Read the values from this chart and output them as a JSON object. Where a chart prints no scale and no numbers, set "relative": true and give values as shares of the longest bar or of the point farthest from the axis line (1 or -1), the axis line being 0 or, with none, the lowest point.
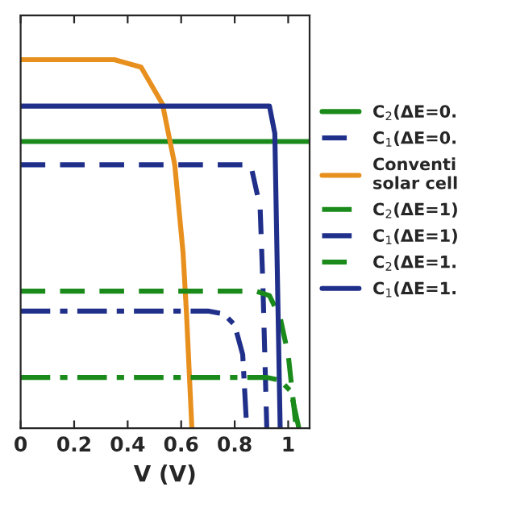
{
  "chart_data": {
    "type": "line",
    "xlabel": "V (V)",
    "relative": true,
    "xlim": [
      0,
      1.08
    ],
    "xticks": [
      0,
      0.2,
      0.4,
      0.6,
      0.8,
      1
    ],
    "legend": "right",
    "grid": false,
    "series": [
      {
        "name": "C$_{2}$(ΔE=0.",
        "color": "#1a8a1a",
        "line_style": "solid",
        "x": [
          0,
          1.08
        ],
        "values": [
          0.778,
          0.778
        ]
      },
      {
        "name": "C$_{1}$(ΔE=0.",
        "color": "#1f2f8a",
        "line_style": "dashed",
        "x": [
          0,
          0.86,
          0.895,
          0.905,
          0.92
        ],
        "values": [
          0.715,
          0.715,
          0.6,
          0.4,
          0
        ]
      },
      {
        "name": "Conventi\nsolar cell",
        "color": "#e8901e",
        "line_style": "solid",
        "x": [
          0,
          0.35,
          0.45,
          0.53,
          0.576,
          0.607,
          0.62,
          0.64
        ],
        "values": [
          1,
          1,
          0.98,
          0.88,
          0.715,
          0.477,
          0.31,
          0
        ]
      },
      {
        "name": "C$_{2}$(ΔE=1)",
        "color": "#1a8a1a",
        "line_style": "dashdot",
        "x": [
          0,
          0.92,
          0.97,
          1.01,
          1.04
        ],
        "values": [
          0.138,
          0.138,
          0.13,
          0.1,
          0
        ]
      },
      {
        "name": "C$_{1}$(ΔE=1)",
        "color": "#1f2f8a",
        "line_style": "dashdot",
        "x": [
          0,
          0.7,
          0.76,
          0.8,
          0.83,
          0.845
        ],
        "values": [
          0.318,
          0.318,
          0.31,
          0.28,
          0.2,
          0
        ]
      },
      {
        "name": "C$_{2}$(ΔE=1.",
        "color": "#1a8a1a",
        "line_style": "dashed",
        "x": [
          0,
          0.88,
          0.93,
          0.97,
          1.0,
          1.03
        ],
        "values": [
          0.372,
          0.372,
          0.36,
          0.3,
          0.2,
          0
        ]
      },
      {
        "name": "C$_{1}$(ΔE=1.",
        "color": "#1f2f8a",
        "line_style": "solid",
        "x": [
          0,
          0.93,
          0.95,
          0.97
        ],
        "values": [
          0.874,
          0.874,
          0.8,
          0
        ]
      }
    ]
  }
}
